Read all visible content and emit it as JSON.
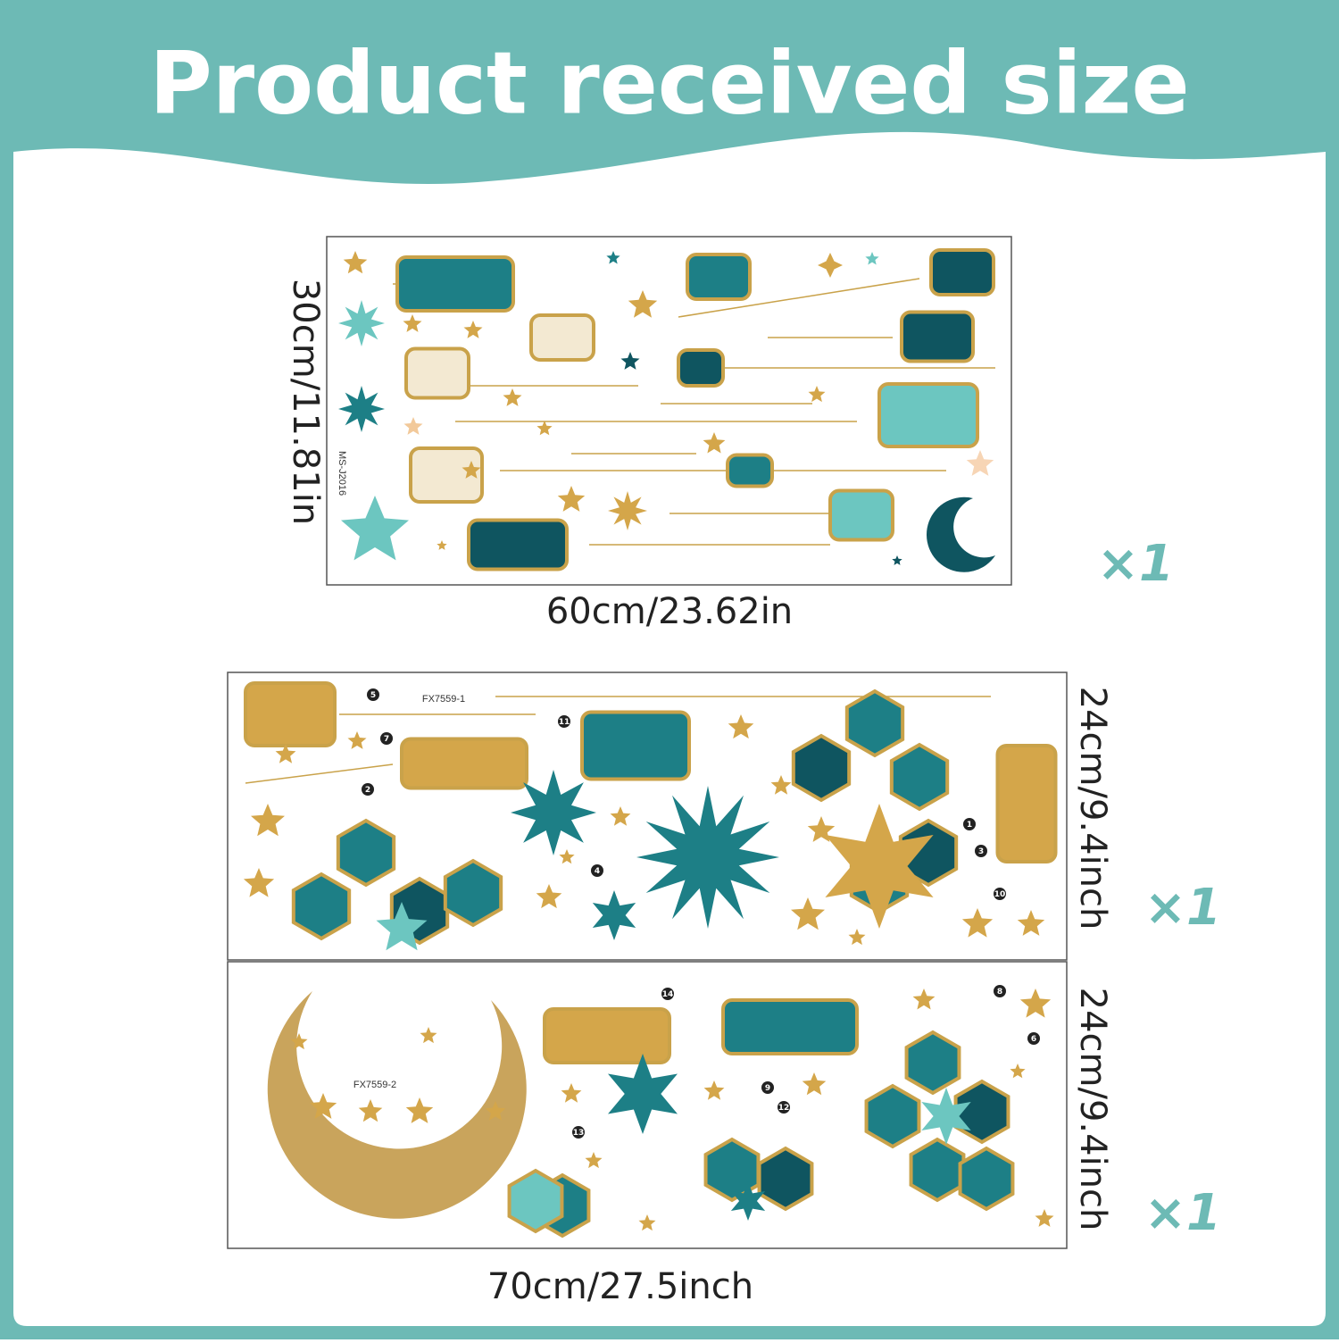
{
  "header": {
    "title": "Product received size"
  },
  "sheets": [
    {
      "code": "MS-J2016",
      "height_label": "30cm/11.81in",
      "width_label": "60cm/23.62in",
      "quantity": "×1"
    },
    {
      "code": "FX7559-1",
      "height_label": "24cm/9.4inch",
      "quantity": "×1",
      "markers": [
        "5",
        "7",
        "11",
        "2",
        "4",
        "1",
        "3",
        "10"
      ]
    },
    {
      "code": "FX7559-2",
      "height_label": "24cm/9.4inch",
      "width_label": "70cm/27.5inch",
      "quantity": "×1",
      "markers": [
        "14",
        "8",
        "6",
        "9",
        "12",
        "13"
      ]
    }
  ]
}
